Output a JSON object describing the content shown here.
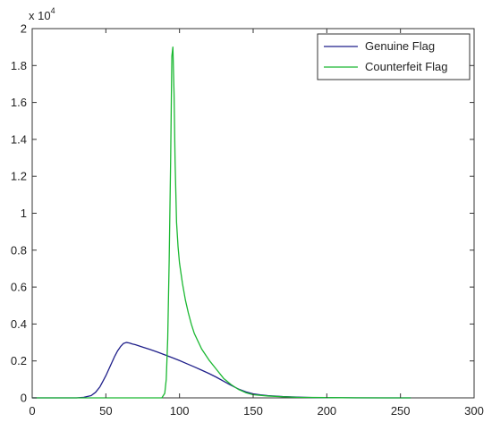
{
  "chart_data": {
    "type": "line",
    "title": "",
    "xlabel": "",
    "ylabel": "",
    "xlim": [
      0,
      300
    ],
    "ylim": [
      0,
      20000
    ],
    "x_ticks": [
      0,
      50,
      100,
      150,
      200,
      250,
      300
    ],
    "x_tick_labels": [
      "0",
      "50",
      "100",
      "150",
      "200",
      "250",
      "300"
    ],
    "y_ticks": [
      0,
      2000,
      4000,
      6000,
      8000,
      10000,
      12000,
      14000,
      16000,
      18000,
      20000
    ],
    "y_tick_labels": [
      "0",
      "0.2",
      "0.4",
      "0.6",
      "0.8",
      "1",
      "1.2",
      "1.4",
      "1.6",
      "1.8",
      "2"
    ],
    "y_multiplier": {
      "base": "x 10",
      "exponent": "4"
    },
    "grid": false,
    "legend_position": "top-right",
    "series": [
      {
        "name": "Genuine Flag",
        "color": "#1f1f8a",
        "x": [
          0,
          30,
          35,
          40,
          43,
          46,
          48,
          50,
          52,
          54,
          56,
          58,
          60,
          62,
          64,
          66,
          68,
          70,
          75,
          80,
          85,
          90,
          95,
          100,
          105,
          110,
          115,
          120,
          125,
          130,
          135,
          140,
          145,
          150,
          155,
          160,
          170,
          180,
          190,
          200,
          210,
          220,
          240,
          257
        ],
        "y": [
          0,
          0,
          30,
          120,
          300,
          600,
          900,
          1200,
          1550,
          1900,
          2250,
          2550,
          2780,
          2950,
          3000,
          2970,
          2920,
          2880,
          2750,
          2620,
          2480,
          2330,
          2180,
          2020,
          1850,
          1680,
          1500,
          1320,
          1120,
          900,
          680,
          480,
          330,
          220,
          160,
          120,
          70,
          40,
          20,
          10,
          5,
          0,
          0,
          0
        ]
      },
      {
        "name": "Counterfeit Flag",
        "color": "#1bb832",
        "x": [
          0,
          80,
          88,
          90,
          91,
          92,
          93,
          94,
          94.8,
          95.5,
          96.3,
          97,
          98,
          99,
          100,
          102,
          104,
          106,
          108,
          110,
          115,
          120,
          125,
          130,
          135,
          140,
          145,
          150,
          160,
          170,
          180,
          200,
          220,
          240,
          257
        ],
        "y": [
          0,
          0,
          0,
          250,
          1000,
          3200,
          7500,
          13000,
          18500,
          19000,
          16500,
          12800,
          9500,
          8200,
          7300,
          6200,
          5300,
          4600,
          4000,
          3500,
          2650,
          2050,
          1550,
          1050,
          720,
          460,
          280,
          170,
          100,
          60,
          30,
          15,
          5,
          0,
          0
        ]
      }
    ]
  }
}
